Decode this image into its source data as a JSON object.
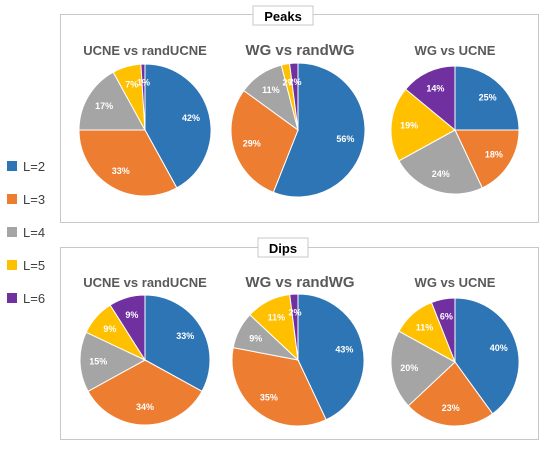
{
  "legend": {
    "items": [
      {
        "label": "L=2",
        "color": "#2E75B6"
      },
      {
        "label": "L=3",
        "color": "#ED7D31"
      },
      {
        "label": "L=4",
        "color": "#A5A5A5"
      },
      {
        "label": "L=5",
        "color": "#FFC000"
      },
      {
        "label": "L=6",
        "color": "#7030A0"
      }
    ]
  },
  "chart_data": [
    {
      "type": "pie",
      "group": "Peaks",
      "title": "UCNE vs randUCNE",
      "categories": [
        "L=2",
        "L=3",
        "L=4",
        "L=5",
        "L=6"
      ],
      "values": [
        42,
        33,
        17,
        7,
        1
      ],
      "labels": [
        "42%",
        "33%",
        "17%",
        "7%",
        "1%"
      ]
    },
    {
      "type": "pie",
      "group": "Peaks",
      "title": "WG vs randWG",
      "categories": [
        "L=2",
        "L=3",
        "L=4",
        "L=5",
        "L=6"
      ],
      "values": [
        56,
        29,
        11,
        2,
        2
      ],
      "labels": [
        "56%",
        "29%",
        "11%",
        "2%",
        "2%"
      ]
    },
    {
      "type": "pie",
      "group": "Peaks",
      "title": "WG vs UCNE",
      "categories": [
        "L=2",
        "L=3",
        "L=4",
        "L=5",
        "L=6"
      ],
      "values": [
        25,
        18,
        24,
        19,
        14
      ],
      "labels": [
        "25%",
        "18%",
        "24%",
        "19%",
        "14%"
      ]
    },
    {
      "type": "pie",
      "group": "Dips",
      "title": "UCNE vs randUCNE",
      "categories": [
        "L=2",
        "L=3",
        "L=4",
        "L=5",
        "L=6"
      ],
      "values": [
        33,
        34,
        15,
        9,
        9
      ],
      "labels": [
        "33%",
        "34%",
        "15%",
        "9%",
        "9%"
      ]
    },
    {
      "type": "pie",
      "group": "Dips",
      "title": "WG vs randWG",
      "categories": [
        "L=2",
        "L=3",
        "L=4",
        "L=5",
        "L=6"
      ],
      "values": [
        43,
        35,
        9,
        11,
        2
      ],
      "labels": [
        "43%",
        "35%",
        "9%",
        "11%",
        "2%"
      ]
    },
    {
      "type": "pie",
      "group": "Dips",
      "title": "WG vs UCNE",
      "categories": [
        "L=2",
        "L=3",
        "L=4",
        "L=5",
        "L=6"
      ],
      "values": [
        40,
        23,
        20,
        11,
        6
      ],
      "labels": [
        "40%",
        "23%",
        "20%",
        "11%",
        "6%"
      ]
    }
  ],
  "groups": [
    "Peaks",
    "Dips"
  ]
}
